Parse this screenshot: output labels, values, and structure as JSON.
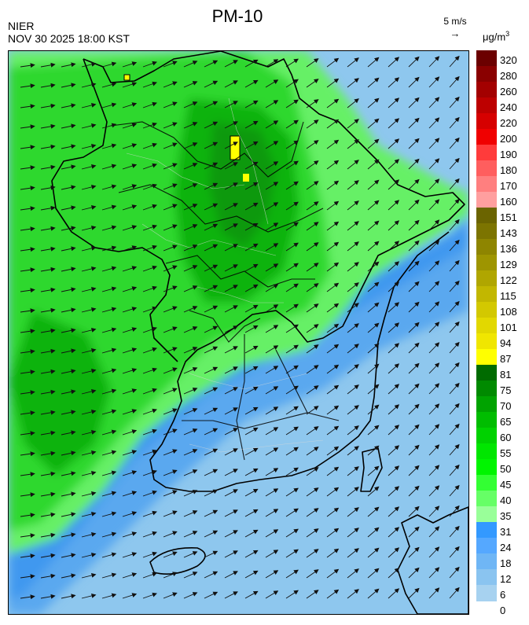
{
  "title": "PM-10",
  "org": "NIER",
  "timestamp": "NOV 30 2025 18:00 KST",
  "wind_scale": {
    "label": "5 m/s",
    "arrow": "→"
  },
  "unit": {
    "base": "μg/m",
    "exp": "3"
  },
  "legend": {
    "labels": [
      "320",
      "280",
      "260",
      "240",
      "220",
      "200",
      "190",
      "180",
      "170",
      "160",
      "151",
      "143",
      "136",
      "129",
      "122",
      "115",
      "108",
      "101",
      "94",
      "87",
      "81",
      "75",
      "70",
      "65",
      "60",
      "55",
      "50",
      "45",
      "40",
      "35",
      "31",
      "24",
      "18",
      "12",
      "6",
      "0"
    ],
    "colors": [
      "#6b0000",
      "#8a0000",
      "#a30000",
      "#bd0000",
      "#d60000",
      "#f00000",
      "#ff3b3b",
      "#ff5e5e",
      "#ff7f7f",
      "#ff9f9f",
      "#6b6400",
      "#7c7400",
      "#8e8500",
      "#9e9500",
      "#b0a600",
      "#c2b700",
      "#d3c800",
      "#e2d800",
      "#f0e600",
      "#ffff00",
      "#006b00",
      "#008a00",
      "#00a300",
      "#00bd00",
      "#00d200",
      "#00e600",
      "#00f500",
      "#33ff33",
      "#66ff66",
      "#99ff99",
      "#3399ff",
      "#55a8ff",
      "#6fb6f5",
      "#8ac4f0",
      "#a7d2f0"
    ]
  },
  "map_colors": {
    "sea_far": "#8ec7ee",
    "sea_mid": "#5aa8ef",
    "sea_near": "#3f98ef",
    "green_light": "#66f066",
    "green_mid": "#2fd82f",
    "green_dark": "#0fb30f",
    "green_deep": "#07990a",
    "hot": "#ffff00"
  }
}
